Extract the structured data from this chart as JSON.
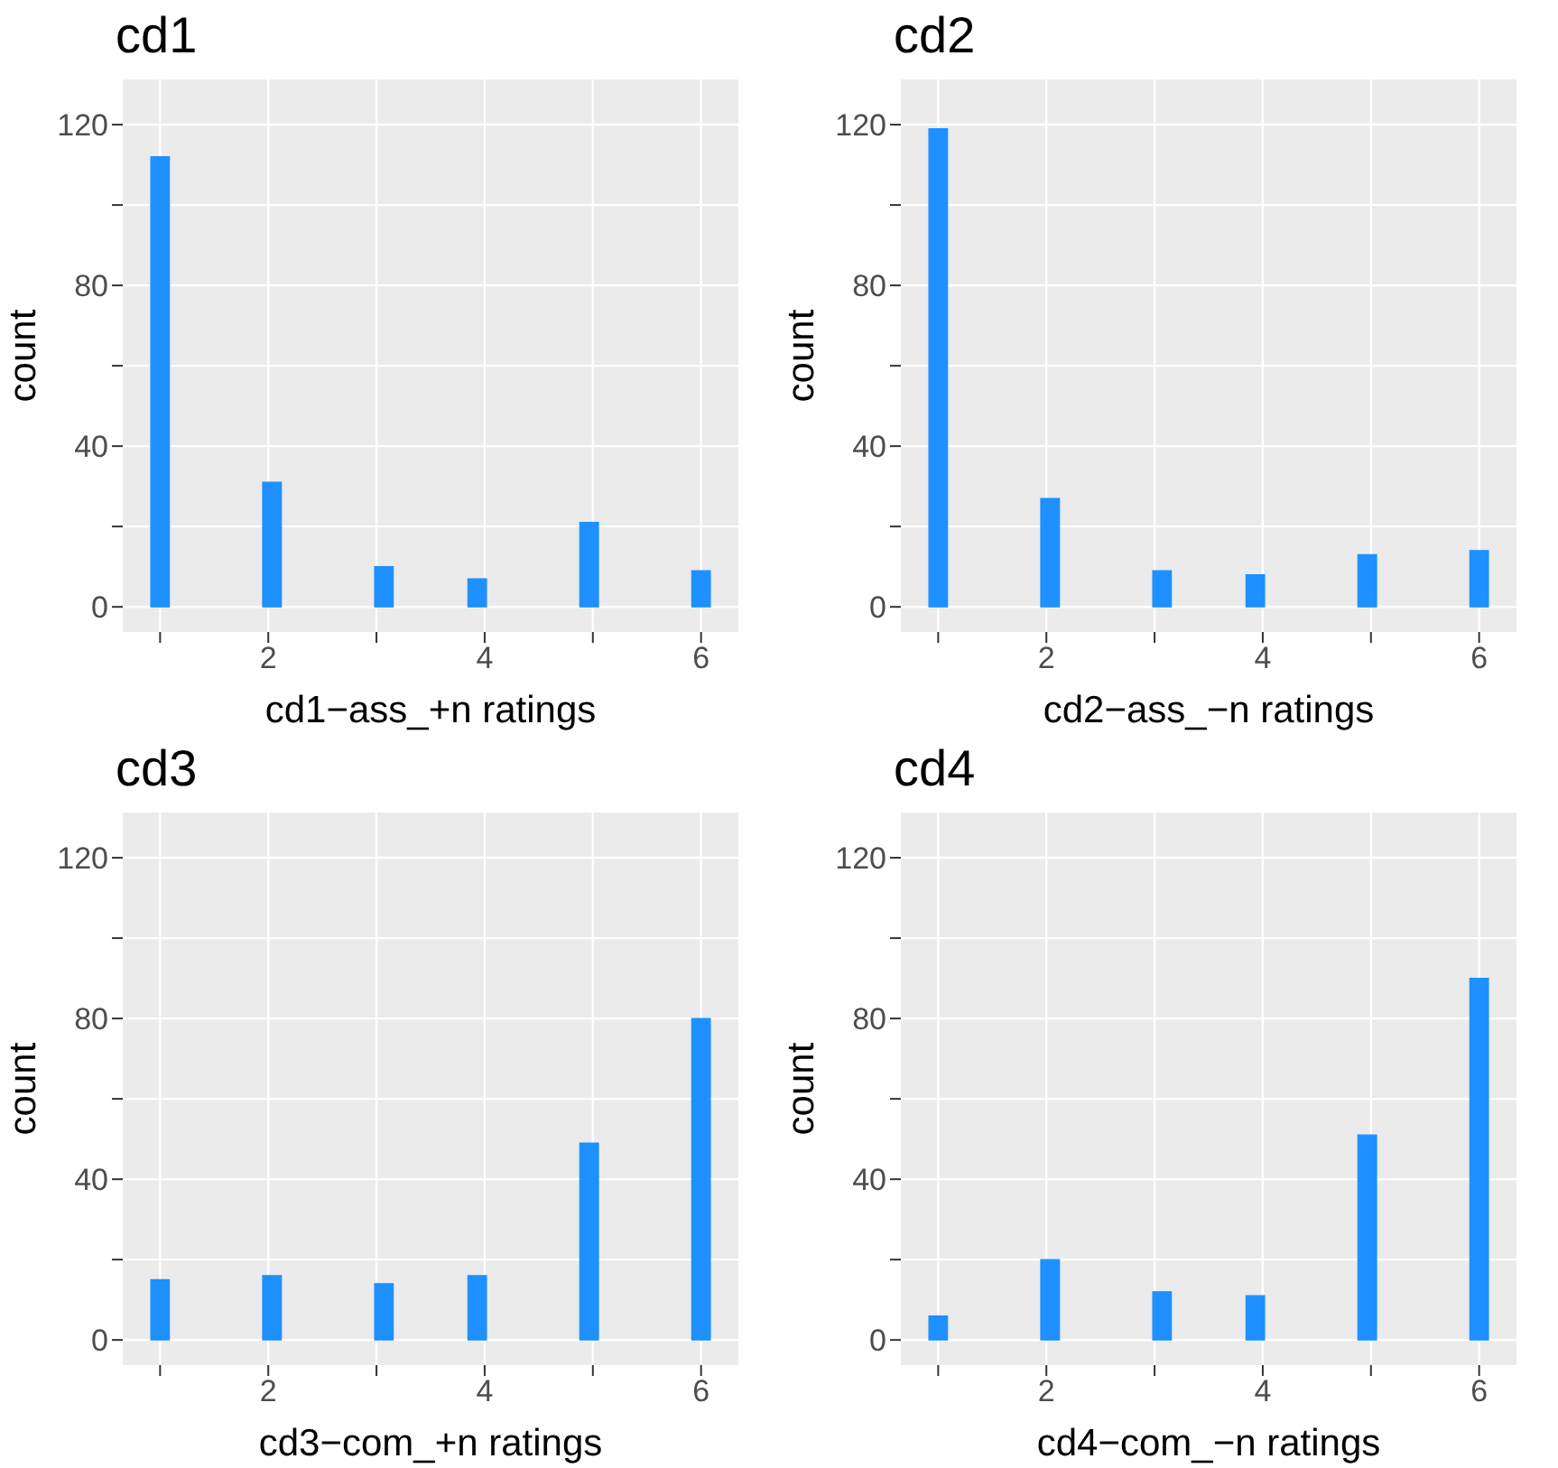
{
  "chart_data": [
    {
      "type": "histogram",
      "title": "cd1",
      "xlabel": "cd1−ass_+n ratings",
      "ylabel": "count",
      "color": "#1e90ff",
      "bins": [
        0.914,
        1.086,
        1.259,
        1.431,
        1.603,
        1.776,
        1.948,
        2.121,
        2.293,
        2.466,
        2.638,
        2.81,
        2.983,
        3.155,
        3.328,
        3.5,
        3.672,
        3.845,
        4.017,
        4.19,
        4.362,
        4.534,
        4.707,
        4.879,
        5.052,
        5.224,
        5.397,
        5.569,
        5.741,
        5.914,
        6.086
      ],
      "values": [
        112,
        0,
        0,
        0,
        0,
        0,
        31,
        0,
        0,
        0,
        0,
        0,
        10,
        0,
        0,
        0,
        0,
        7,
        0,
        0,
        0,
        0,
        0,
        21,
        0,
        0,
        0,
        0,
        0,
        9
      ],
      "xlim": [
        0.655,
        6.345
      ],
      "xticks": [
        {
          "value": 1,
          "label": null
        },
        2,
        {
          "value": 3,
          "label": null
        },
        4,
        {
          "value": 5,
          "label": null
        },
        6
      ],
      "ylim": [
        -6.25,
        131.25
      ],
      "yticks": [
        0,
        {
          "value": 20,
          "label": null
        },
        40,
        {
          "value": 60,
          "label": null
        },
        80,
        {
          "value": 100,
          "label": null
        },
        120
      ],
      "grid": true
    },
    {
      "type": "histogram",
      "title": "cd2",
      "xlabel": "cd2−ass_−n ratings",
      "ylabel": "count",
      "color": "#1e90ff",
      "bins": [
        0.914,
        1.086,
        1.259,
        1.431,
        1.603,
        1.776,
        1.948,
        2.121,
        2.293,
        2.466,
        2.638,
        2.81,
        2.983,
        3.155,
        3.328,
        3.5,
        3.672,
        3.845,
        4.017,
        4.19,
        4.362,
        4.534,
        4.707,
        4.879,
        5.052,
        5.224,
        5.397,
        5.569,
        5.741,
        5.914,
        6.086
      ],
      "values": [
        119,
        0,
        0,
        0,
        0,
        0,
        27,
        0,
        0,
        0,
        0,
        0,
        9,
        0,
        0,
        0,
        0,
        8,
        0,
        0,
        0,
        0,
        0,
        13,
        0,
        0,
        0,
        0,
        0,
        14
      ],
      "xlim": [
        0.655,
        6.345
      ],
      "xticks": [
        {
          "value": 1,
          "label": null
        },
        2,
        {
          "value": 3,
          "label": null
        },
        4,
        {
          "value": 5,
          "label": null
        },
        6
      ],
      "ylim": [
        -6.25,
        131.25
      ],
      "yticks": [
        0,
        {
          "value": 20,
          "label": null
        },
        40,
        {
          "value": 60,
          "label": null
        },
        80,
        {
          "value": 100,
          "label": null
        },
        120
      ],
      "grid": true
    },
    {
      "type": "histogram",
      "title": "cd3",
      "xlabel": "cd3−com_+n ratings",
      "ylabel": "count",
      "color": "#1e90ff",
      "bins": [
        0.914,
        1.086,
        1.259,
        1.431,
        1.603,
        1.776,
        1.948,
        2.121,
        2.293,
        2.466,
        2.638,
        2.81,
        2.983,
        3.155,
        3.328,
        3.5,
        3.672,
        3.845,
        4.017,
        4.19,
        4.362,
        4.534,
        4.707,
        4.879,
        5.052,
        5.224,
        5.397,
        5.569,
        5.741,
        5.914,
        6.086
      ],
      "values": [
        15,
        0,
        0,
        0,
        0,
        0,
        16,
        0,
        0,
        0,
        0,
        0,
        14,
        0,
        0,
        0,
        0,
        16,
        0,
        0,
        0,
        0,
        0,
        49,
        0,
        0,
        0,
        0,
        0,
        80
      ],
      "xlim": [
        0.655,
        6.345
      ],
      "xticks": [
        {
          "value": 1,
          "label": null
        },
        2,
        {
          "value": 3,
          "label": null
        },
        4,
        {
          "value": 5,
          "label": null
        },
        6
      ],
      "ylim": [
        -6.25,
        131.25
      ],
      "yticks": [
        0,
        {
          "value": 20,
          "label": null
        },
        40,
        {
          "value": 60,
          "label": null
        },
        80,
        {
          "value": 100,
          "label": null
        },
        120
      ],
      "grid": true
    },
    {
      "type": "histogram",
      "title": "cd4",
      "xlabel": "cd4−com_−n ratings",
      "ylabel": "count",
      "color": "#1e90ff",
      "bins": [
        0.914,
        1.086,
        1.259,
        1.431,
        1.603,
        1.776,
        1.948,
        2.121,
        2.293,
        2.466,
        2.638,
        2.81,
        2.983,
        3.155,
        3.328,
        3.5,
        3.672,
        3.845,
        4.017,
        4.19,
        4.362,
        4.534,
        4.707,
        4.879,
        5.052,
        5.224,
        5.397,
        5.569,
        5.741,
        5.914,
        6.086
      ],
      "values": [
        6,
        0,
        0,
        0,
        0,
        0,
        20,
        0,
        0,
        0,
        0,
        0,
        12,
        0,
        0,
        0,
        0,
        11,
        0,
        0,
        0,
        0,
        0,
        51,
        0,
        0,
        0,
        0,
        0,
        90
      ],
      "xlim": [
        0.655,
        6.345
      ],
      "xticks": [
        {
          "value": 1,
          "label": null
        },
        2,
        {
          "value": 3,
          "label": null
        },
        4,
        {
          "value": 5,
          "label": null
        },
        6
      ],
      "ylim": [
        -6.25,
        131.25
      ],
      "yticks": [
        0,
        {
          "value": 20,
          "label": null
        },
        40,
        {
          "value": 60,
          "label": null
        },
        80,
        {
          "value": 100,
          "label": null
        },
        120
      ],
      "grid": true
    }
  ]
}
